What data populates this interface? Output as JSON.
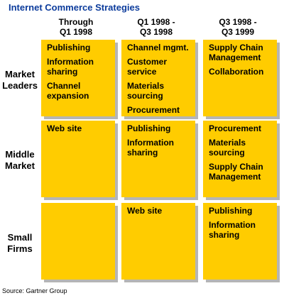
{
  "title": "Internet Commerce Strategies",
  "columns": [
    "Through\nQ1 1998",
    "Q1 1998 -\nQ3 1998",
    "Q3 1998 -\nQ3 1999"
  ],
  "rows": [
    {
      "label": "Market Leaders",
      "cells": [
        [
          "Publishing",
          "Information sharing",
          "Channel expansion"
        ],
        [
          "Channel mgmt.",
          "Customer service",
          "Materials sourcing",
          "Procurement"
        ],
        [
          "Supply Chain Management",
          "Collaboration"
        ]
      ]
    },
    {
      "label": "Middle Market",
      "cells": [
        [
          "Web site"
        ],
        [
          "Publishing",
          "Information sharing"
        ],
        [
          "Procurement",
          "Materials sourcing",
          "Supply Chain Management"
        ]
      ]
    },
    {
      "label": "Small Firms",
      "cells": [
        [],
        [
          "Web site"
        ],
        [
          "Publishing",
          "Information sharing"
        ]
      ]
    }
  ],
  "source": "Source: Gartner Group",
  "colors": {
    "cell": "#ffcc00",
    "shadow": "#b5b5b5",
    "title": "#0b3b9c"
  }
}
